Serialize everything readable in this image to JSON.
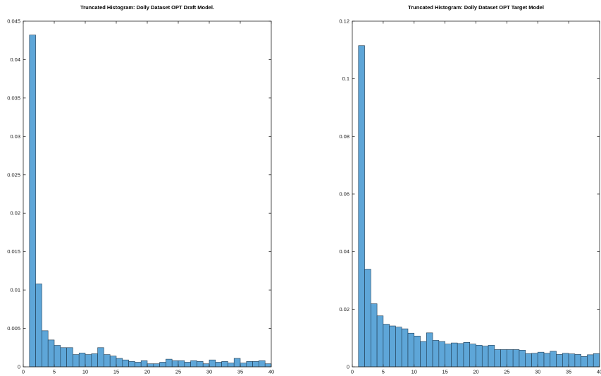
{
  "chart_data": [
    {
      "type": "bar",
      "title": "Truncated Histogram: Dolly Dataset OPT Draft Model.",
      "xlabel": "",
      "ylabel": "",
      "xlim": [
        0,
        40
      ],
      "ylim": [
        0,
        0.045
      ],
      "xticks": [
        0,
        5,
        10,
        15,
        20,
        25,
        30,
        35,
        40
      ],
      "yticks": [
        0,
        0.005,
        0.01,
        0.015,
        0.02,
        0.025,
        0.03,
        0.035,
        0.04,
        0.045
      ],
      "xtick_labels": [
        "0",
        "5",
        "10",
        "15",
        "20",
        "25",
        "30",
        "35",
        "40"
      ],
      "ytick_labels": [
        "0",
        "0.005",
        "0.01",
        "0.015",
        "0.02",
        "0.025",
        "0.03",
        "0.035",
        "0.04",
        "0.045"
      ],
      "bin_width": 1,
      "bin_edges_start": 1,
      "values": [
        0.0432,
        0.0108,
        0.0047,
        0.0035,
        0.0028,
        0.0025,
        0.0025,
        0.0016,
        0.0018,
        0.0016,
        0.0017,
        0.0025,
        0.0016,
        0.0014,
        0.0011,
        0.0009,
        0.0007,
        0.0006,
        0.0008,
        0.0004,
        0.0004,
        0.0006,
        0.001,
        0.0008,
        0.0008,
        0.0006,
        0.0008,
        0.0007,
        0.0004,
        0.0009,
        0.0006,
        0.0007,
        0.0005,
        0.0011,
        0.0005,
        0.0007,
        0.0007,
        0.0008,
        0.0004,
        0.0008
      ],
      "grid": false,
      "bar_color": "#5ea6d8",
      "edge_color": "#1f3b52"
    },
    {
      "type": "bar",
      "title": "Truncated Histogram: Dolly Dataset OPT Target Model",
      "xlabel": "",
      "ylabel": "",
      "xlim": [
        0,
        40
      ],
      "ylim": [
        0,
        0.12
      ],
      "xticks": [
        0,
        5,
        10,
        15,
        20,
        25,
        30,
        35,
        40
      ],
      "yticks": [
        0,
        0.02,
        0.04,
        0.06,
        0.08,
        0.1,
        0.12
      ],
      "xtick_labels": [
        "0",
        "5",
        "10",
        "15",
        "20",
        "25",
        "30",
        "35",
        "40"
      ],
      "ytick_labels": [
        "0",
        "0.02",
        "0.04",
        "0.06",
        "0.08",
        "0.1",
        "0.12"
      ],
      "bin_width": 1,
      "bin_edges_start": 1,
      "values": [
        0.1115,
        0.0339,
        0.0219,
        0.0177,
        0.0148,
        0.0142,
        0.0138,
        0.0132,
        0.0117,
        0.0107,
        0.0088,
        0.0118,
        0.0092,
        0.0088,
        0.0079,
        0.0083,
        0.0081,
        0.0085,
        0.0079,
        0.0075,
        0.0072,
        0.0075,
        0.006,
        0.006,
        0.006,
        0.006,
        0.0058,
        0.0046,
        0.0047,
        0.0051,
        0.0047,
        0.0054,
        0.0043,
        0.0047,
        0.0045,
        0.0043,
        0.0036,
        0.0042,
        0.0046,
        0.0044
      ],
      "grid": false,
      "bar_color": "#5ea6d8",
      "edge_color": "#1f3b52"
    }
  ]
}
